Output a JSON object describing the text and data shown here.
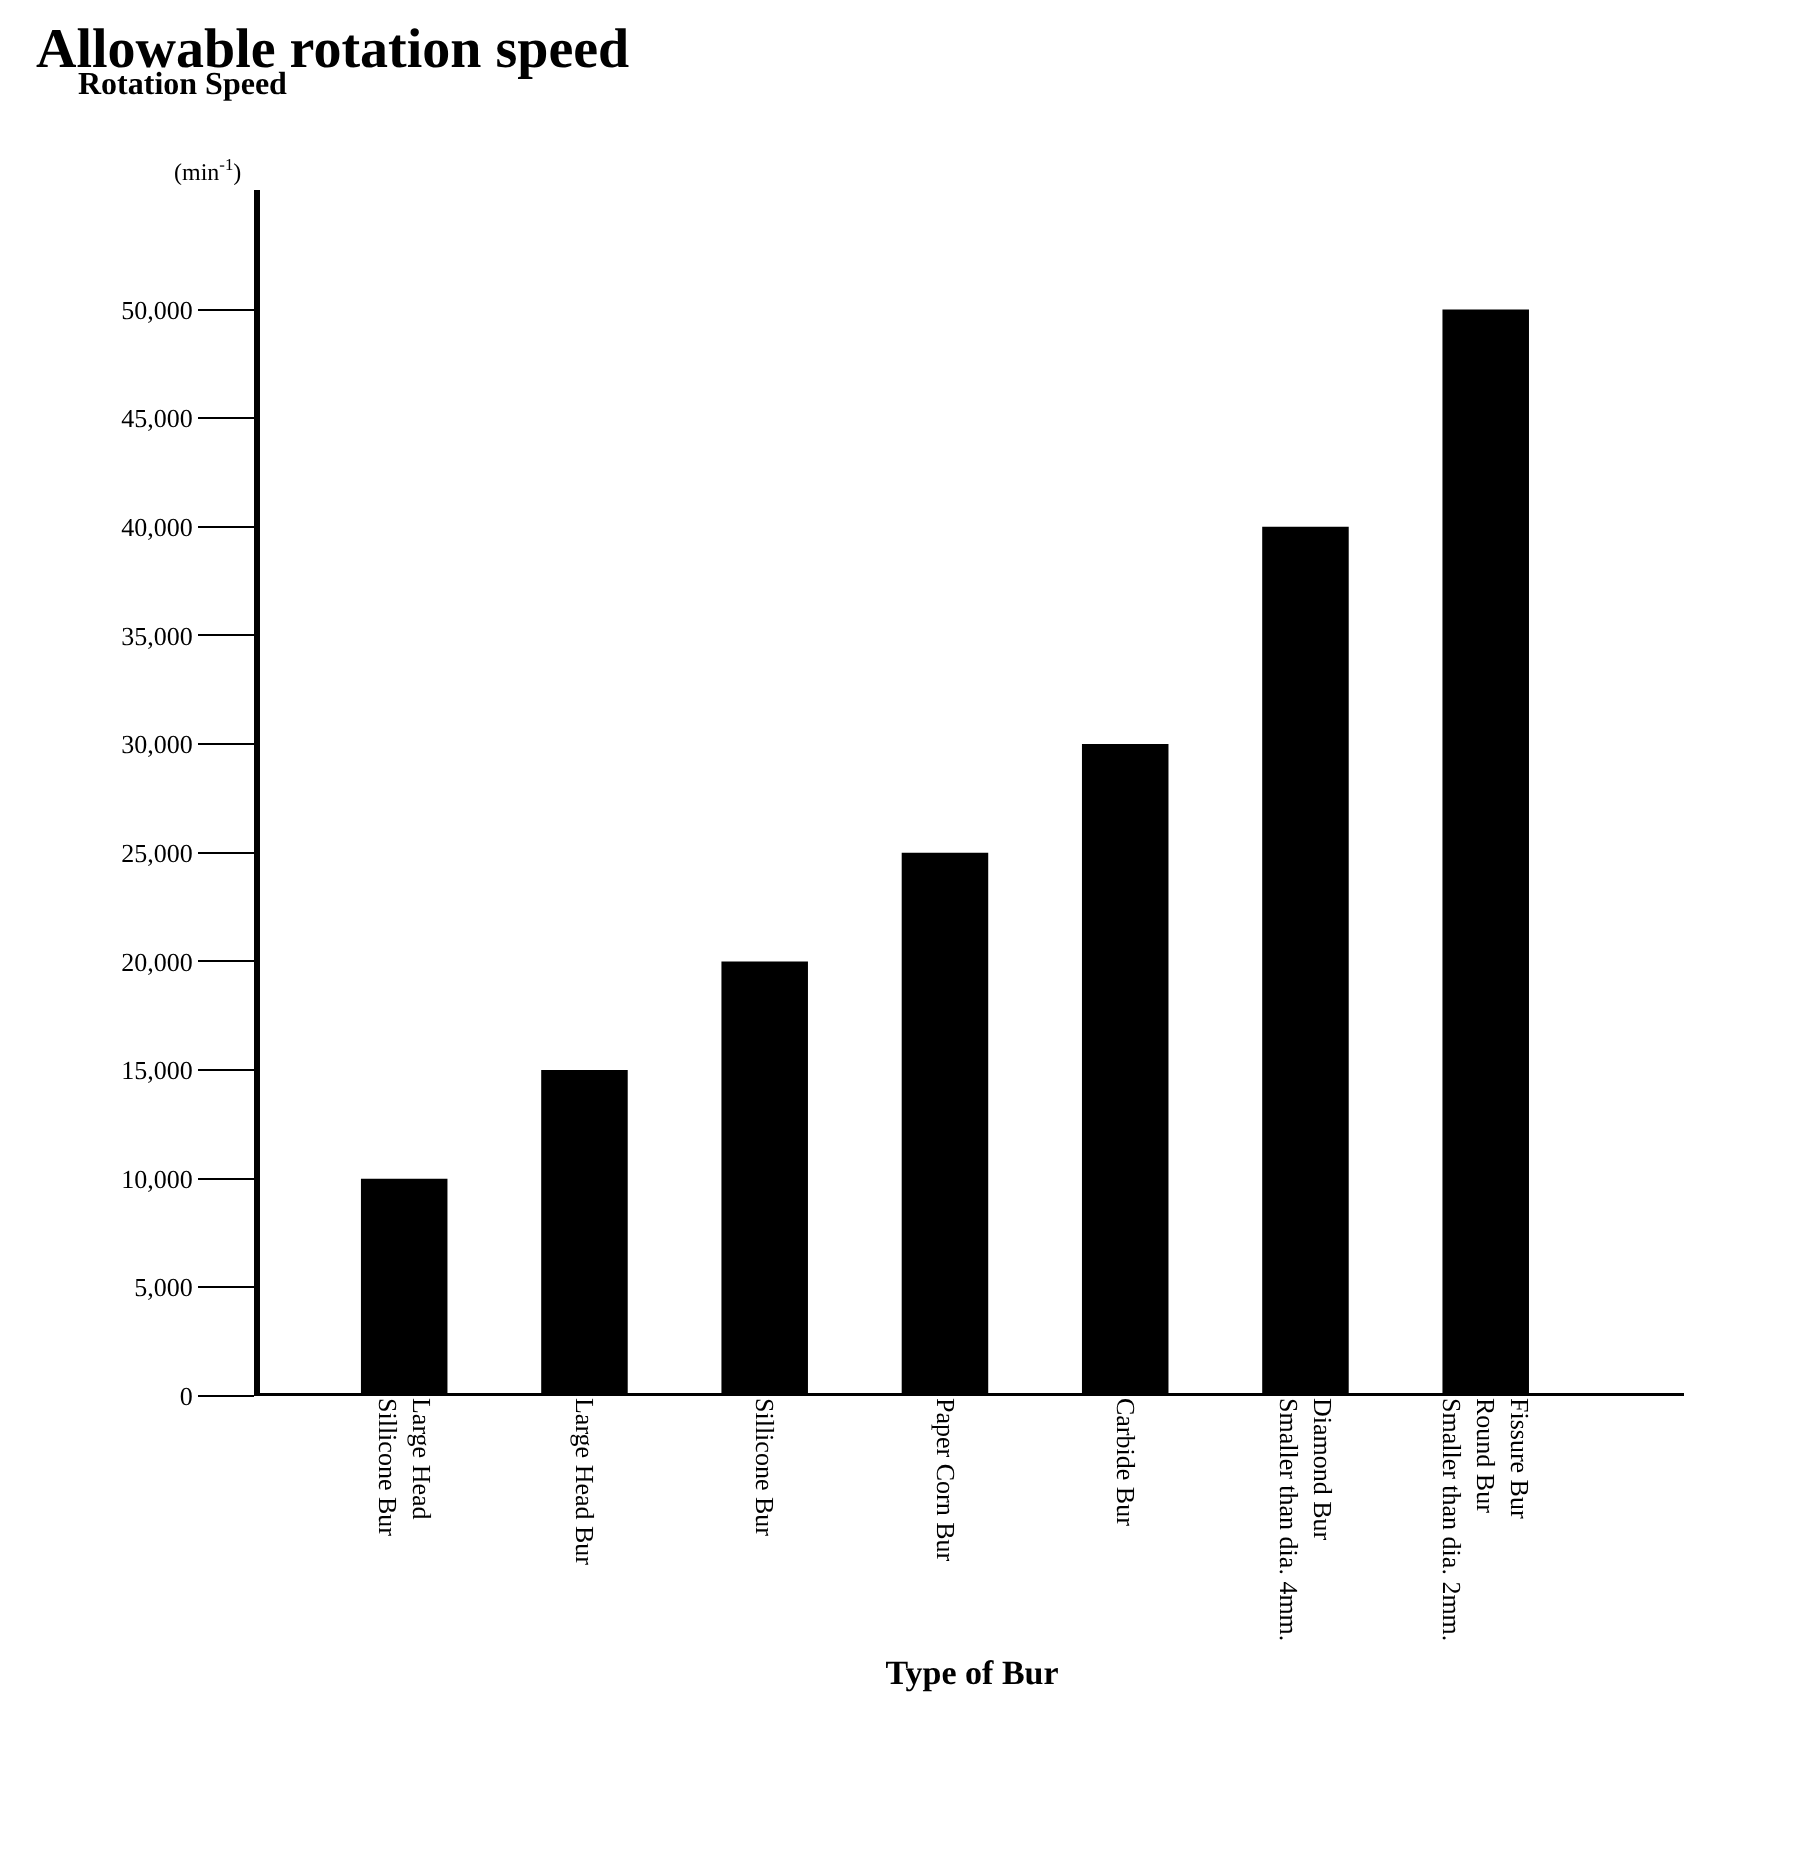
{
  "chart_data": {
    "type": "bar",
    "title": "Allowable rotation speed",
    "ylabel": "Rotation Speed",
    "xlabel": "Type of Bur",
    "annotations": [
      "(min$^{-1}$)"
    ],
    "categories": [
      "Large Head\nSillicone Bur",
      "Large Head Bur",
      "Sillicone Bur",
      "Paper Corn Bur",
      "Carbide Bur",
      "Diamond Bur\nSmaller than dia. 4mm.",
      "Fissure Bur\nRound Bur\nSmaller than dia. 2mm."
    ],
    "values": [
      10000,
      15000,
      20000,
      25000,
      30000,
      40000,
      50000
    ],
    "color": "#000000",
    "ylim": [
      0,
      55500
    ],
    "yticks": [
      0,
      {
        "value": 5000,
        "label": "5,000"
      },
      {
        "value": 10000,
        "label": "10,000"
      },
      {
        "value": 15000,
        "label": "15,000"
      },
      {
        "value": 20000,
        "label": "20,000"
      },
      {
        "value": 25000,
        "label": "25,000"
      },
      {
        "value": 30000,
        "label": "30,000"
      },
      {
        "value": 35000,
        "label": "35,000"
      },
      {
        "value": 40000,
        "label": "40,000"
      },
      {
        "value": 45000,
        "label": "45,000"
      },
      {
        "value": 50000,
        "label": "50,000"
      }
    ]
  }
}
